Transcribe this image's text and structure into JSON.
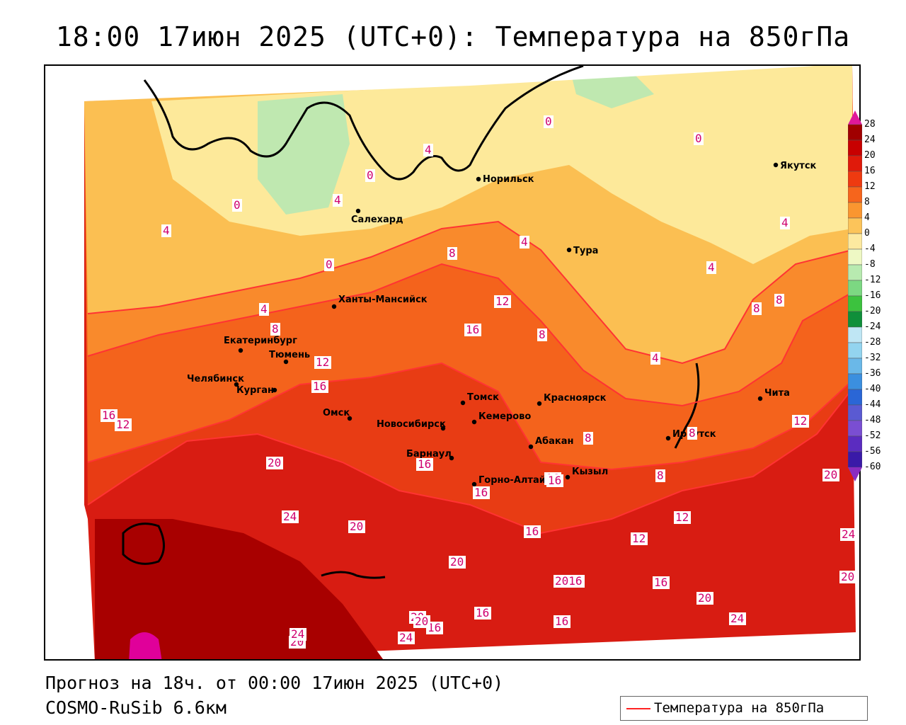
{
  "title": "18:00 17июн 2025 (UTC+0): Температура на 850гПа",
  "forecast_text": "Прогноз на 18ч. от 00:00 17июн 2025 (UTC+0)",
  "model_text": "COSMO-RuSib 6.6км",
  "legend": {
    "label": "Температура на 850гПа",
    "line_color": "#ff2222"
  },
  "colorbar": {
    "ticks": [
      "28",
      "24",
      "20",
      "16",
      "12",
      "8",
      "4",
      "0",
      "-4",
      "-8",
      "-12",
      "-16",
      "-20",
      "-24",
      "-28",
      "-32",
      "-36",
      "-40",
      "-44",
      "-48",
      "-52",
      "-56",
      "-60"
    ]
  },
  "cities": [
    {
      "name": "Салехард"
    },
    {
      "name": "Норильск"
    },
    {
      "name": "Тура"
    },
    {
      "name": "Якутск"
    },
    {
      "name": "Ханты-Мансийск"
    },
    {
      "name": "Екатеринбург"
    },
    {
      "name": "Тюмень"
    },
    {
      "name": "Челябинск"
    },
    {
      "name": "Курган"
    },
    {
      "name": "Омск"
    },
    {
      "name": "Новосибирск"
    },
    {
      "name": "Томск"
    },
    {
      "name": "Кемерово"
    },
    {
      "name": "Красноярск"
    },
    {
      "name": "Барнаул"
    },
    {
      "name": "Абакан"
    },
    {
      "name": "Горно-Алтайск"
    },
    {
      "name": "Кызыл"
    },
    {
      "name": "Иркутск"
    },
    {
      "name": "Чита"
    }
  ],
  "isoline_labels": [
    "0",
    "0",
    "0",
    "0",
    "0",
    "4",
    "4",
    "4",
    "4",
    "4",
    "4",
    "4",
    "4",
    "8",
    "8",
    "8",
    "8",
    "8",
    "8",
    "8",
    "8",
    "12",
    "12",
    "12",
    "12",
    "12",
    "12",
    "16",
    "16",
    "16",
    "16",
    "16",
    "16",
    "16",
    "16",
    "16",
    "16",
    "16",
    "16",
    "20",
    "20",
    "20",
    "20",
    "20",
    "20",
    "20",
    "20",
    "20",
    "24",
    "24",
    "24",
    "24",
    "24",
    "2016"
  ]
}
